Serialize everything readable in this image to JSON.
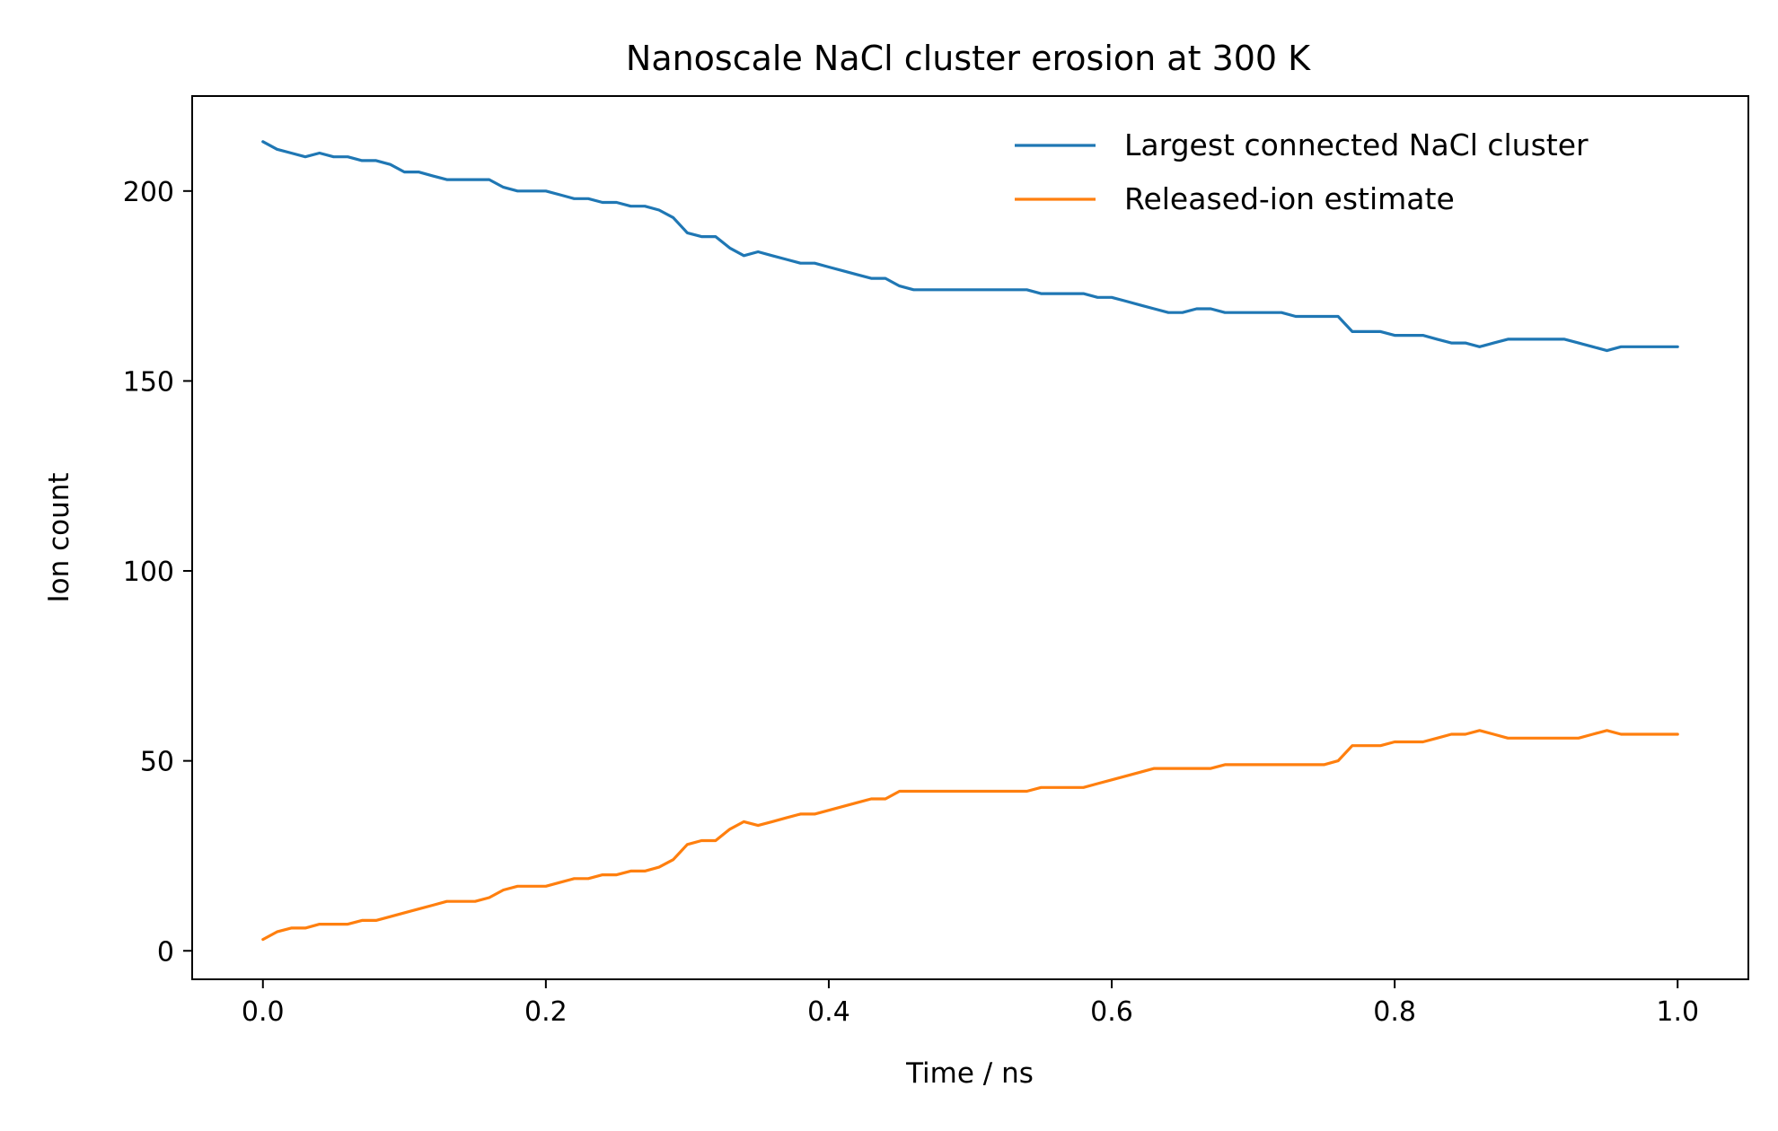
{
  "chart_data": {
    "type": "line",
    "title": "Nanoscale NaCl cluster erosion at 300 K",
    "xlabel": "Time / ns",
    "ylabel": "Ion count",
    "xlim": [
      -0.05,
      1.05
    ],
    "ylim": [
      -7.5,
      225
    ],
    "xticks": [
      0.0,
      0.2,
      0.4,
      0.6,
      0.8,
      1.0
    ],
    "xtick_labels": [
      "0.0",
      "0.2",
      "0.4",
      "0.6",
      "0.8",
      "1.0"
    ],
    "yticks": [
      0,
      50,
      100,
      150,
      200
    ],
    "ytick_labels": [
      "0",
      "50",
      "100",
      "150",
      "200"
    ],
    "grid": false,
    "legend_position": "top-right",
    "series": [
      {
        "name": "Largest connected NaCl cluster",
        "color": "#1f77b4",
        "x": [
          0.0,
          0.01,
          0.02,
          0.03,
          0.04,
          0.05,
          0.06,
          0.07,
          0.08,
          0.09,
          0.1,
          0.11,
          0.12,
          0.13,
          0.14,
          0.15,
          0.16,
          0.17,
          0.18,
          0.19,
          0.2,
          0.21,
          0.22,
          0.23,
          0.24,
          0.25,
          0.26,
          0.27,
          0.28,
          0.29,
          0.3,
          0.31,
          0.32,
          0.33,
          0.34,
          0.35,
          0.36,
          0.37,
          0.38,
          0.39,
          0.4,
          0.41,
          0.42,
          0.43,
          0.44,
          0.45,
          0.46,
          0.47,
          0.48,
          0.49,
          0.5,
          0.51,
          0.52,
          0.53,
          0.54,
          0.55,
          0.56,
          0.57,
          0.58,
          0.59,
          0.6,
          0.61,
          0.62,
          0.63,
          0.64,
          0.65,
          0.66,
          0.67,
          0.68,
          0.69,
          0.7,
          0.71,
          0.72,
          0.73,
          0.74,
          0.75,
          0.76,
          0.77,
          0.78,
          0.79,
          0.8,
          0.81,
          0.82,
          0.83,
          0.84,
          0.85,
          0.86,
          0.87,
          0.88,
          0.89,
          0.9,
          0.91,
          0.92,
          0.93,
          0.94,
          0.95,
          0.96,
          0.97,
          0.98,
          0.99,
          1.0
        ],
        "y": [
          213,
          211,
          210,
          209,
          210,
          209,
          209,
          208,
          208,
          207,
          205,
          205,
          204,
          203,
          203,
          203,
          203,
          201,
          200,
          200,
          200,
          199,
          198,
          198,
          197,
          197,
          196,
          196,
          195,
          193,
          189,
          188,
          188,
          185,
          183,
          184,
          183,
          182,
          181,
          181,
          180,
          179,
          178,
          177,
          177,
          175,
          174,
          174,
          174,
          174,
          174,
          174,
          174,
          174,
          174,
          173,
          173,
          173,
          173,
          172,
          172,
          171,
          170,
          169,
          168,
          168,
          169,
          169,
          168,
          168,
          168,
          168,
          168,
          167,
          167,
          167,
          167,
          163,
          163,
          163,
          162,
          162,
          162,
          161,
          160,
          160,
          159,
          160,
          161,
          161,
          161,
          161,
          161,
          160,
          159,
          158,
          159,
          159,
          159,
          159,
          159
        ]
      },
      {
        "name": "Released-ion estimate",
        "color": "#ff7f0e",
        "x": [
          0.0,
          0.01,
          0.02,
          0.03,
          0.04,
          0.05,
          0.06,
          0.07,
          0.08,
          0.09,
          0.1,
          0.11,
          0.12,
          0.13,
          0.14,
          0.15,
          0.16,
          0.17,
          0.18,
          0.19,
          0.2,
          0.21,
          0.22,
          0.23,
          0.24,
          0.25,
          0.26,
          0.27,
          0.28,
          0.29,
          0.3,
          0.31,
          0.32,
          0.33,
          0.34,
          0.35,
          0.36,
          0.37,
          0.38,
          0.39,
          0.4,
          0.41,
          0.42,
          0.43,
          0.44,
          0.45,
          0.46,
          0.47,
          0.48,
          0.49,
          0.5,
          0.51,
          0.52,
          0.53,
          0.54,
          0.55,
          0.56,
          0.57,
          0.58,
          0.59,
          0.6,
          0.61,
          0.62,
          0.63,
          0.64,
          0.65,
          0.66,
          0.67,
          0.68,
          0.69,
          0.7,
          0.71,
          0.72,
          0.73,
          0.74,
          0.75,
          0.76,
          0.77,
          0.78,
          0.79,
          0.8,
          0.81,
          0.82,
          0.83,
          0.84,
          0.85,
          0.86,
          0.87,
          0.88,
          0.89,
          0.9,
          0.91,
          0.92,
          0.93,
          0.94,
          0.95,
          0.96,
          0.97,
          0.98,
          0.99,
          1.0
        ],
        "y": [
          3,
          5,
          6,
          6,
          7,
          7,
          7,
          8,
          8,
          9,
          10,
          11,
          12,
          13,
          13,
          13,
          14,
          16,
          17,
          17,
          17,
          18,
          19,
          19,
          20,
          20,
          21,
          21,
          22,
          24,
          28,
          29,
          29,
          32,
          34,
          33,
          34,
          35,
          36,
          36,
          37,
          38,
          39,
          40,
          40,
          42,
          42,
          42,
          42,
          42,
          42,
          42,
          42,
          42,
          42,
          43,
          43,
          43,
          43,
          44,
          45,
          46,
          47,
          48,
          48,
          48,
          48,
          48,
          49,
          49,
          49,
          49,
          49,
          49,
          49,
          49,
          50,
          54,
          54,
          54,
          55,
          55,
          55,
          56,
          57,
          57,
          58,
          57,
          56,
          56,
          56,
          56,
          56,
          56,
          57,
          58,
          57,
          57,
          57,
          57,
          57
        ]
      }
    ]
  }
}
